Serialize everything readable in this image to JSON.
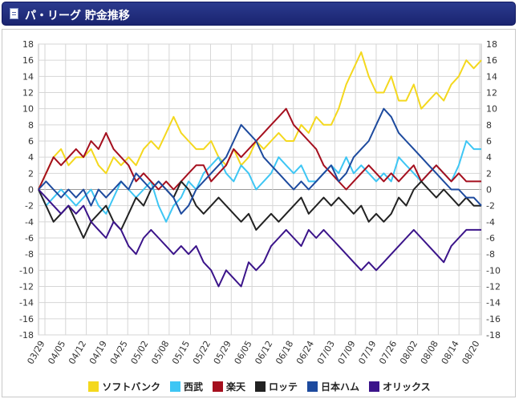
{
  "header": {
    "title": "パ・リーグ 貯金推移",
    "icon": "document-icon"
  },
  "chart_data": {
    "type": "line",
    "title": "",
    "xlabel": "",
    "ylabel": "",
    "ylim": [
      -18,
      18
    ],
    "yticks": [
      "18",
      "16",
      "14",
      "12",
      "10",
      "8",
      "6",
      "4",
      "2",
      "0",
      "-2",
      "-4",
      "-6",
      "-8",
      "-10",
      "-12",
      "-14",
      "-16",
      "-18"
    ],
    "x_labels": [
      "03/29",
      "04/05",
      "04/12",
      "04/19",
      "04/25",
      "05/02",
      "05/08",
      "05/15",
      "05/22",
      "05/29",
      "06/05",
      "06/12",
      "06/18",
      "06/24",
      "07/03",
      "07/09",
      "07/19",
      "07/26",
      "08/02",
      "08/08",
      "08/14",
      "08/20"
    ],
    "grid": true,
    "legend_position": "bottom",
    "series": [
      {
        "name": "ソフトバンク",
        "color": "#f4d81e",
        "values": [
          0,
          2,
          4,
          5,
          3,
          4,
          4,
          5,
          3,
          2,
          4,
          3,
          4,
          3,
          5,
          6,
          5,
          7,
          9,
          7,
          6,
          5,
          5,
          6,
          4,
          3,
          5,
          3,
          4,
          6,
          5,
          6,
          7,
          6,
          6,
          8,
          7,
          9,
          8,
          8,
          10,
          13,
          15,
          17,
          14,
          12,
          12,
          14,
          11,
          11,
          13,
          10,
          11,
          12,
          11,
          13,
          14,
          16,
          15,
          16
        ]
      },
      {
        "name": "西武",
        "color": "#3ec6f4",
        "values": [
          0,
          -2,
          -1,
          0,
          -1,
          -2,
          -1,
          0,
          -2,
          -3,
          -1,
          1,
          0,
          -1,
          0,
          1,
          -2,
          -4,
          -2,
          -1,
          1,
          0,
          2,
          3,
          4,
          2,
          1,
          3,
          2,
          0,
          1,
          2,
          4,
          3,
          2,
          3,
          1,
          1,
          2,
          3,
          2,
          4,
          2,
          3,
          2,
          1,
          2,
          1,
          4,
          3,
          2,
          1,
          2,
          3,
          2,
          1,
          3,
          6,
          5,
          5
        ]
      },
      {
        "name": "楽天",
        "color": "#a50f1e",
        "values": [
          0,
          2,
          4,
          3,
          4,
          5,
          4,
          6,
          5,
          7,
          5,
          4,
          3,
          1,
          2,
          1,
          0,
          1,
          0,
          1,
          2,
          3,
          3,
          1,
          2,
          3,
          5,
          4,
          5,
          6,
          7,
          8,
          9,
          10,
          8,
          7,
          6,
          5,
          3,
          2,
          1,
          0,
          1,
          2,
          3,
          2,
          1,
          2,
          1,
          2,
          3,
          1,
          2,
          3,
          2,
          1,
          2,
          1,
          1,
          1
        ]
      },
      {
        "name": "ロッテ",
        "color": "#222222",
        "values": [
          0,
          -2,
          -4,
          -3,
          -2,
          -4,
          -6,
          -4,
          -3,
          -2,
          -4,
          -5,
          -3,
          -1,
          -2,
          0,
          1,
          0,
          -1,
          1,
          0,
          -2,
          -3,
          -2,
          -1,
          -2,
          -3,
          -4,
          -3,
          -5,
          -4,
          -3,
          -4,
          -3,
          -2,
          -1,
          -3,
          -2,
          -1,
          -2,
          -1,
          -2,
          -3,
          -2,
          -4,
          -3,
          -4,
          -3,
          -1,
          -2,
          0,
          1,
          0,
          -1,
          0,
          -1,
          -2,
          -1,
          -2,
          -2
        ]
      },
      {
        "name": "日本ハム",
        "color": "#1d4a9e",
        "values": [
          0,
          1,
          0,
          -1,
          0,
          -1,
          0,
          -2,
          0,
          -1,
          0,
          1,
          0,
          2,
          1,
          0,
          1,
          0,
          -1,
          -3,
          -2,
          0,
          1,
          2,
          3,
          4,
          6,
          8,
          7,
          6,
          4,
          3,
          2,
          1,
          0,
          1,
          0,
          1,
          2,
          3,
          1,
          2,
          4,
          5,
          6,
          8,
          10,
          9,
          7,
          6,
          5,
          4,
          3,
          2,
          1,
          0,
          0,
          -1,
          -1,
          -2
        ]
      },
      {
        "name": "オリックス",
        "color": "#3b148a",
        "values": [
          0,
          -1,
          -2,
          -3,
          -2,
          -3,
          -2,
          -4,
          -5,
          -6,
          -4,
          -5,
          -7,
          -8,
          -6,
          -5,
          -6,
          -7,
          -8,
          -7,
          -8,
          -7,
          -9,
          -10,
          -12,
          -10,
          -11,
          -12,
          -9,
          -10,
          -9,
          -7,
          -6,
          -5,
          -6,
          -7,
          -5,
          -6,
          -5,
          -6,
          -7,
          -8,
          -9,
          -10,
          -9,
          -10,
          -9,
          -8,
          -7,
          -6,
          -5,
          -6,
          -7,
          -8,
          -9,
          -7,
          -6,
          -5,
          -5,
          -5
        ]
      }
    ]
  }
}
